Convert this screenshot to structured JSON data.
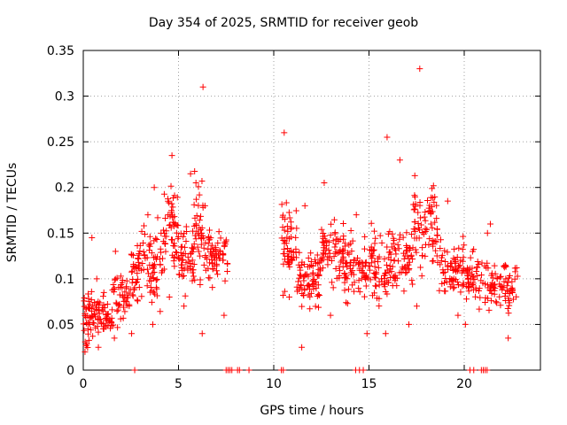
{
  "chart_data": {
    "type": "scatter",
    "title": "Day 354 of 2025, SRMTID for receiver geob",
    "xlabel": "GPS time / hours",
    "ylabel": "SRMTID / TECUs",
    "xlim": [
      0,
      24
    ],
    "ylim": [
      0,
      0.35
    ],
    "xticks": [
      0,
      5,
      10,
      15,
      20
    ],
    "yticks": [
      0,
      0.05,
      0.1,
      0.15,
      0.2,
      0.25,
      0.3,
      0.35
    ],
    "ytick_labels": [
      "0",
      "0.05",
      "0.1",
      "0.15",
      "0.2",
      "0.25",
      "0.3",
      "0.35"
    ],
    "grid": true,
    "marker": "+",
    "color": "#ff0000",
    "series": [
      {
        "name": "SRMTID",
        "segments": [
          {
            "x_range": [
              0.0,
              0.5
            ],
            "y_mean": 0.06,
            "y_spread": 0.04,
            "y_min": 0.02,
            "y_max": 0.145,
            "n": 40
          },
          {
            "x_range": [
              0.5,
              1.5
            ],
            "y_mean": 0.06,
            "y_spread": 0.02,
            "y_min": 0.025,
            "y_max": 0.1,
            "n": 60
          },
          {
            "x_range": [
              1.5,
              2.5
            ],
            "y_mean": 0.08,
            "y_spread": 0.025,
            "y_min": 0.035,
            "y_max": 0.13,
            "n": 50
          },
          {
            "x_range": [
              2.5,
              3.5
            ],
            "y_mean": 0.115,
            "y_spread": 0.035,
            "y_min": 0.04,
            "y_max": 0.17,
            "n": 60
          },
          {
            "x_range": [
              3.5,
              4.2
            ],
            "y_mean": 0.11,
            "y_spread": 0.04,
            "y_min": 0.05,
            "y_max": 0.2,
            "n": 45
          },
          {
            "x_range": [
              4.2,
              5.0
            ],
            "y_mean": 0.15,
            "y_spread": 0.04,
            "y_min": 0.08,
            "y_max": 0.235,
            "n": 55
          },
          {
            "x_range": [
              5.0,
              5.8
            ],
            "y_mean": 0.12,
            "y_spread": 0.035,
            "y_min": 0.07,
            "y_max": 0.215,
            "n": 50
          },
          {
            "x_range": [
              5.8,
              6.3
            ],
            "y_mean": 0.16,
            "y_spread": 0.06,
            "y_min": 0.04,
            "y_max": 0.31,
            "n": 40
          },
          {
            "x_range": [
              6.3,
              7.6
            ],
            "y_mean": 0.125,
            "y_spread": 0.03,
            "y_min": 0.06,
            "y_max": 0.18,
            "n": 70
          },
          {
            "x_range": [
              10.4,
              11.2
            ],
            "y_mean": 0.14,
            "y_spread": 0.05,
            "y_min": 0.08,
            "y_max": 0.26,
            "n": 55
          },
          {
            "x_range": [
              11.2,
              12.5
            ],
            "y_mean": 0.1,
            "y_spread": 0.03,
            "y_min": 0.025,
            "y_max": 0.18,
            "n": 80
          },
          {
            "x_range": [
              12.5,
              13.7
            ],
            "y_mean": 0.13,
            "y_spread": 0.035,
            "y_min": 0.06,
            "y_max": 0.205,
            "n": 70
          },
          {
            "x_range": [
              13.7,
              15.0
            ],
            "y_mean": 0.11,
            "y_spread": 0.03,
            "y_min": 0.04,
            "y_max": 0.17,
            "n": 75
          },
          {
            "x_range": [
              15.0,
              16.0
            ],
            "y_mean": 0.11,
            "y_spread": 0.04,
            "y_min": 0.04,
            "y_max": 0.255,
            "n": 60
          },
          {
            "x_range": [
              16.0,
              17.3
            ],
            "y_mean": 0.12,
            "y_spread": 0.035,
            "y_min": 0.05,
            "y_max": 0.23,
            "n": 75
          },
          {
            "x_range": [
              17.3,
              18.6
            ],
            "y_mean": 0.15,
            "y_spread": 0.05,
            "y_min": 0.07,
            "y_max": 0.33,
            "n": 80
          },
          {
            "x_range": [
              18.6,
              20.0
            ],
            "y_mean": 0.11,
            "y_spread": 0.03,
            "y_min": 0.06,
            "y_max": 0.185,
            "n": 75
          },
          {
            "x_range": [
              20.0,
              21.3
            ],
            "y_mean": 0.1,
            "y_spread": 0.03,
            "y_min": 0.05,
            "y_max": 0.15,
            "n": 60
          },
          {
            "x_range": [
              21.3,
              22.8
            ],
            "y_mean": 0.09,
            "y_spread": 0.025,
            "y_min": 0.035,
            "y_max": 0.16,
            "n": 75
          }
        ],
        "zero_points_x": [
          2.7,
          7.5,
          7.6,
          7.7,
          7.8,
          8.1,
          8.2,
          8.7,
          10.4,
          10.5,
          14.3,
          14.5,
          14.7,
          20.3,
          20.5,
          20.9,
          21.0,
          21.1,
          21.2
        ]
      }
    ]
  }
}
